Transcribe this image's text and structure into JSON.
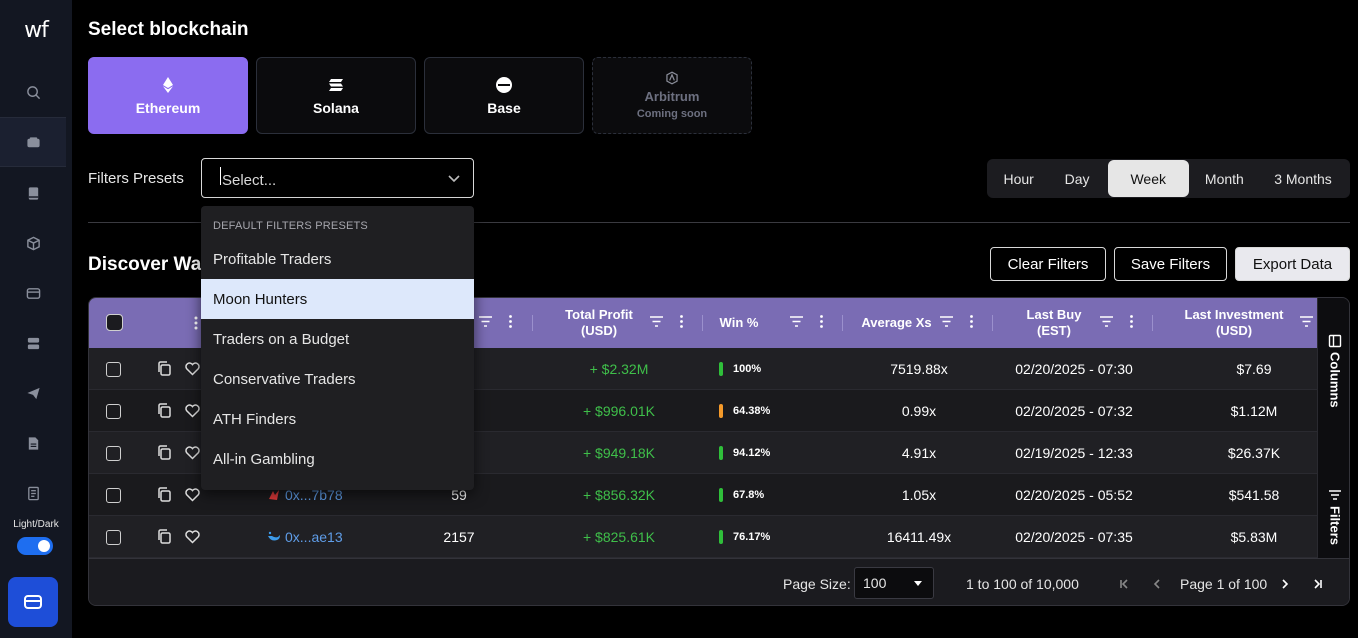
{
  "app": {
    "logo": "wf"
  },
  "sidebar": {
    "icons": [
      "search-icon",
      "wallet-icon",
      "book-icon",
      "cube-icon",
      "card-icon",
      "server-icon",
      "send-icon",
      "document-icon",
      "receipt-icon"
    ],
    "theme_label": "Light/Dark",
    "theme_toggle_on": true
  },
  "header": {
    "title": "Select blockchain"
  },
  "chains": [
    {
      "label": "Ethereum",
      "selected": true
    },
    {
      "label": "Solana",
      "selected": false
    },
    {
      "label": "Base",
      "selected": false
    },
    {
      "label": "Arbitrum",
      "sublabel": "Coming soon",
      "disabled": true
    }
  ],
  "filters": {
    "label": "Filters Presets",
    "placeholder": "Select...",
    "menu_header": "DEFAULT FILTERS PRESETS",
    "options": [
      "Profitable Traders",
      "Moon Hunters",
      "Traders on a Budget",
      "Conservative Traders",
      "ATH Finders",
      "All-in Gambling"
    ],
    "highlighted": "Moon Hunters"
  },
  "timeframes": {
    "options": [
      "Hour",
      "Day",
      "Week",
      "Month",
      "3 Months"
    ],
    "selected": "Week"
  },
  "discover": {
    "title": "Discover Wallets",
    "clear_label": "Clear Filters",
    "save_label": "Save Filters",
    "export_label": "Export Data"
  },
  "table": {
    "headers": {
      "total_profit_1": "Total Profit",
      "total_profit_2": "(USD)",
      "win": "Win %",
      "avg_xs": "Average Xs",
      "last_buy_1": "Last Buy",
      "last_buy_2": "(EST)",
      "last_inv_1": "Last Investment",
      "last_inv_2": "(USD)"
    },
    "rows": [
      {
        "wallet": "",
        "trades": "",
        "profit": "+ $2.32M",
        "win": "100%",
        "win_color": "#2fbf3a",
        "avg": "7519.88x",
        "last_buy": "02/20/2025 - 07:30",
        "last_inv": "$7.69"
      },
      {
        "wallet": "",
        "trades": "",
        "profit": "+ $996.01K",
        "win": "64.38%",
        "win_color": "#f59a2a",
        "avg": "0.99x",
        "last_buy": "02/20/2025 - 07:32",
        "last_inv": "$1.12M"
      },
      {
        "wallet": "",
        "trades": "",
        "profit": "+ $949.18K",
        "win": "94.12%",
        "win_color": "#2fbf3a",
        "avg": "4.91x",
        "last_buy": "02/19/2025 - 12:33",
        "last_inv": "$26.37K"
      },
      {
        "wallet": "0x...7b78",
        "trades": "59",
        "profit": "+ $856.32K",
        "win": "67.8%",
        "win_color": "#2fbf3a",
        "avg": "1.05x",
        "last_buy": "02/20/2025 - 05:52",
        "last_inv": "$541.58"
      },
      {
        "wallet": "0x...ae13",
        "trades": "2157",
        "profit": "+ $825.61K",
        "win": "76.17%",
        "win_color": "#2fbf3a",
        "avg": "16411.49x",
        "last_buy": "02/20/2025 - 07:35",
        "last_inv": "$5.83M"
      }
    ],
    "rail": {
      "columns": "Columns",
      "filters": "Filters"
    }
  },
  "footer": {
    "page_size_label": "Page Size:",
    "page_size": "100",
    "range": "1 to 100 of 10,000",
    "page": "Page 1 of 100"
  }
}
